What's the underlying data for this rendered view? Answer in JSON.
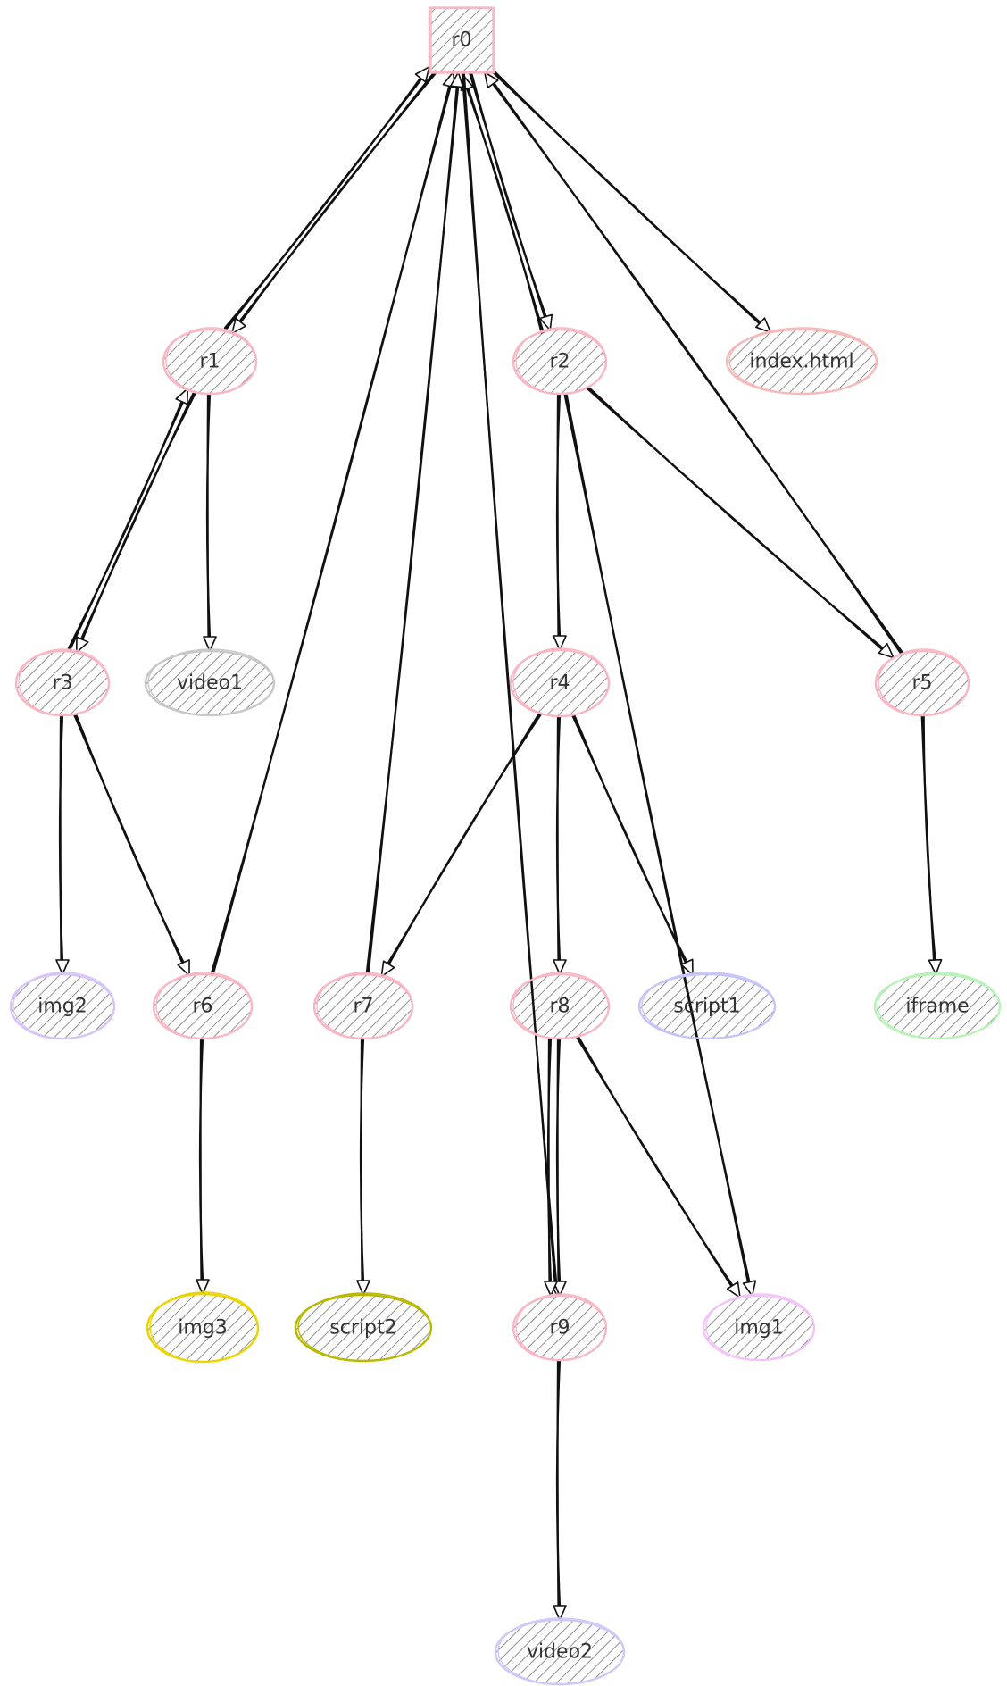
{
  "diagram": {
    "nodes": [
      {
        "id": "r0",
        "label": "r0",
        "shape": "box",
        "color": "#f9b6c3"
      },
      {
        "id": "r1",
        "label": "r1",
        "shape": "ellipse",
        "color": "#f9b6c3"
      },
      {
        "id": "r2",
        "label": "r2",
        "shape": "ellipse",
        "color": "#f9b6c3"
      },
      {
        "id": "index",
        "label": "index.html",
        "shape": "ellipse",
        "color": "#f7b8b8"
      },
      {
        "id": "r3",
        "label": "r3",
        "shape": "ellipse",
        "color": "#f9b6c3"
      },
      {
        "id": "video1",
        "label": "video1",
        "shape": "ellipse",
        "color": "#c8c8c8"
      },
      {
        "id": "r4",
        "label": "r4",
        "shape": "ellipse",
        "color": "#f9b6c3"
      },
      {
        "id": "r5",
        "label": "r5",
        "shape": "ellipse",
        "color": "#f9b6c3"
      },
      {
        "id": "img2",
        "label": "img2",
        "shape": "ellipse",
        "color": "#d8c4f7"
      },
      {
        "id": "r6",
        "label": "r6",
        "shape": "ellipse",
        "color": "#f9b6c3"
      },
      {
        "id": "r7",
        "label": "r7",
        "shape": "ellipse",
        "color": "#f9b6c3"
      },
      {
        "id": "r8",
        "label": "r8",
        "shape": "ellipse",
        "color": "#f9b6c3"
      },
      {
        "id": "script1",
        "label": "script1",
        "shape": "ellipse",
        "color": "#c4c4f7"
      },
      {
        "id": "iframe",
        "label": "iframe",
        "shape": "ellipse",
        "color": "#b8f2b8"
      },
      {
        "id": "img3",
        "label": "img3",
        "shape": "ellipse",
        "color": "#ead500"
      },
      {
        "id": "script2",
        "label": "script2",
        "shape": "ellipse",
        "color": "#b8b800"
      },
      {
        "id": "r9",
        "label": "r9",
        "shape": "ellipse",
        "color": "#f9b6c3"
      },
      {
        "id": "img1",
        "label": "img1",
        "shape": "ellipse",
        "color": "#f2c4f7"
      },
      {
        "id": "video2",
        "label": "video2",
        "shape": "ellipse",
        "color": "#d0c8f7"
      }
    ],
    "edges": [
      {
        "from": "r0",
        "to": "r1"
      },
      {
        "from": "r1",
        "to": "r0"
      },
      {
        "from": "r0",
        "to": "r2"
      },
      {
        "from": "r2",
        "to": "r0"
      },
      {
        "from": "r0",
        "to": "index"
      },
      {
        "from": "r5",
        "to": "r0"
      },
      {
        "from": "r6",
        "to": "r0"
      },
      {
        "from": "r7",
        "to": "r0"
      },
      {
        "from": "r0",
        "to": "r9"
      },
      {
        "from": "r1",
        "to": "r3"
      },
      {
        "from": "r3",
        "to": "r1"
      },
      {
        "from": "r1",
        "to": "video1"
      },
      {
        "from": "r2",
        "to": "r4"
      },
      {
        "from": "r2",
        "to": "r5"
      },
      {
        "from": "r2",
        "to": "img1"
      },
      {
        "from": "r3",
        "to": "img2"
      },
      {
        "from": "r3",
        "to": "r6"
      },
      {
        "from": "r4",
        "to": "r7"
      },
      {
        "from": "r4",
        "to": "r8"
      },
      {
        "from": "r4",
        "to": "script1"
      },
      {
        "from": "r5",
        "to": "iframe"
      },
      {
        "from": "r6",
        "to": "img3"
      },
      {
        "from": "r7",
        "to": "script2"
      },
      {
        "from": "r8",
        "to": "r9"
      },
      {
        "from": "r8",
        "to": "r9"
      },
      {
        "from": "r8",
        "to": "img1"
      },
      {
        "from": "r9",
        "to": "video2"
      }
    ]
  }
}
